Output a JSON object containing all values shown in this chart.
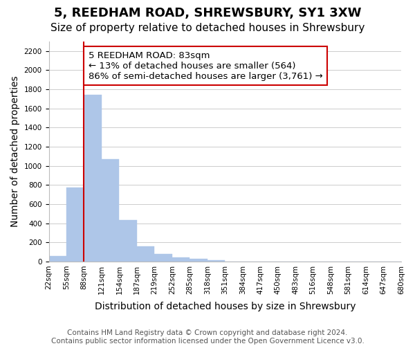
{
  "title": "5, REEDHAM ROAD, SHREWSBURY, SY1 3XW",
  "subtitle": "Size of property relative to detached houses in Shrewsbury",
  "xlabel": "Distribution of detached houses by size in Shrewsbury",
  "ylabel": "Number of detached properties",
  "bin_labels": [
    "22sqm",
    "55sqm",
    "88sqm",
    "121sqm",
    "154sqm",
    "187sqm",
    "219sqm",
    "252sqm",
    "285sqm",
    "318sqm",
    "351sqm",
    "384sqm",
    "417sqm",
    "450sqm",
    "483sqm",
    "516sqm",
    "548sqm",
    "581sqm",
    "614sqm",
    "647sqm",
    "680sqm"
  ],
  "bar_values": [
    55,
    770,
    1745,
    1070,
    430,
    155,
    80,
    40,
    25,
    15,
    0,
    0,
    0,
    0,
    0,
    0,
    0,
    0,
    0,
    0
  ],
  "bar_color": "#aec6e8",
  "property_line_label": "5 REEDHAM ROAD: 83sqm",
  "annotation_line1": "← 13% of detached houses are smaller (564)",
  "annotation_line2": "86% of semi-detached houses are larger (3,761) →",
  "annotation_box_color": "#ffffff",
  "annotation_box_edgecolor": "#cc0000",
  "red_line_color": "#cc0000",
  "ylim": [
    0,
    2300
  ],
  "yticks": [
    0,
    200,
    400,
    600,
    800,
    1000,
    1200,
    1400,
    1600,
    1800,
    2000,
    2200
  ],
  "footer_line1": "Contains HM Land Registry data © Crown copyright and database right 2024.",
  "footer_line2": "Contains public sector information licensed under the Open Government Licence v3.0.",
  "title_fontsize": 13,
  "subtitle_fontsize": 11,
  "axis_label_fontsize": 10,
  "tick_fontsize": 7.5,
  "footer_fontsize": 7.5,
  "annotation_fontsize": 9.5
}
